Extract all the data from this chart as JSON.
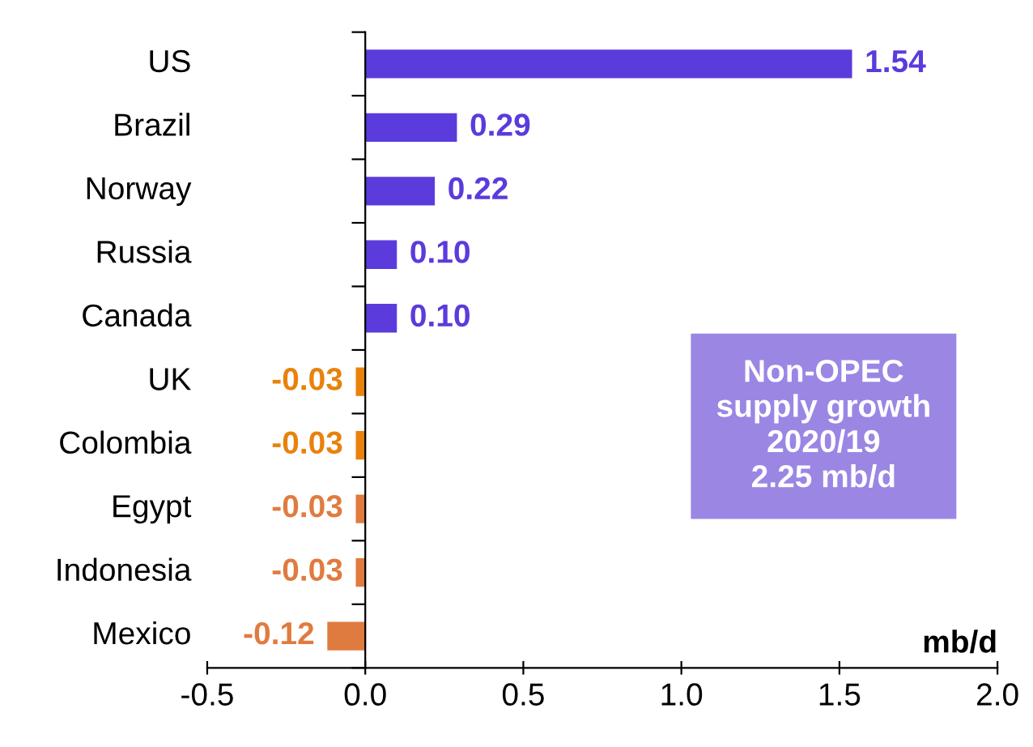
{
  "chart_data": {
    "type": "bar",
    "orientation": "horizontal",
    "categories": [
      "US",
      "Brazil",
      "Norway",
      "Russia",
      "Canada",
      "UK",
      "Colombia",
      "Egypt",
      "Indonesia",
      "Mexico"
    ],
    "values": [
      1.54,
      0.29,
      0.22,
      0.1,
      0.1,
      -0.03,
      -0.03,
      -0.03,
      -0.03,
      -0.12
    ],
    "colors": [
      "#5b3bdc",
      "#5b3bdc",
      "#5b3bdc",
      "#5b3bdc",
      "#5b3bdc",
      "#e8820c",
      "#e8820c",
      "#e07b3f",
      "#e07b3f",
      "#e07b3f"
    ],
    "value_labels": [
      "1.54",
      "0.29",
      "0.22",
      "0.10",
      "0.10",
      "-0.03",
      "-0.03",
      "-0.03",
      "-0.03",
      "-0.12"
    ],
    "xlabel": "mb/d",
    "xlim": [
      -0.5,
      2.0
    ],
    "xticks": [
      -0.5,
      {
        "value": 0,
        "label": "0.0"
      },
      0.5,
      {
        "value": 1,
        "label": "1.0"
      },
      1.5,
      {
        "value": 2,
        "label": "2.0"
      }
    ],
    "annotations": [
      "Non-OPEC\nsupply growth\n2020/19\n2.25 mb/d"
    ]
  }
}
